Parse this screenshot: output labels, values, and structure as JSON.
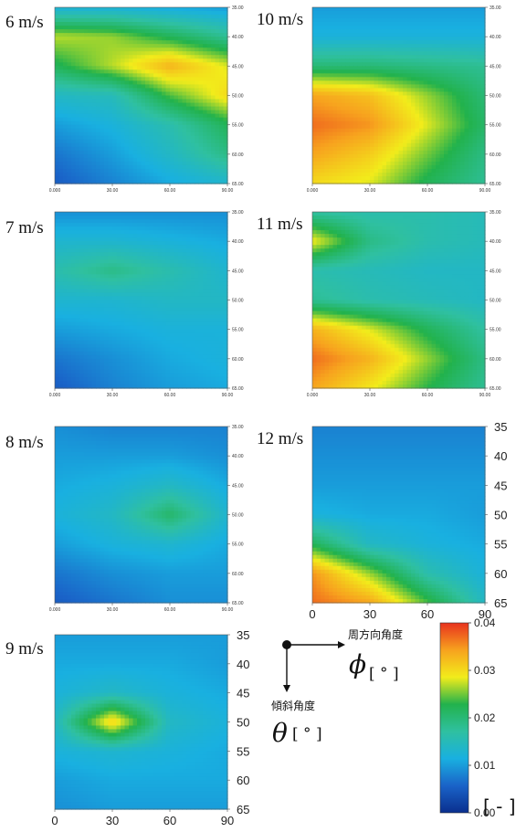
{
  "chart_data": [
    {
      "type": "heatmap",
      "title": "6 m/s",
      "x": [
        0,
        30,
        60,
        90
      ],
      "x_tick_labels": [
        "0.000",
        "30.00",
        "60.00",
        "90.00"
      ],
      "y": [
        35,
        40,
        45,
        50,
        55,
        60,
        65
      ],
      "y_tick_labels": [
        "35.00",
        "40.00",
        "45.00",
        "50.00",
        "55.00",
        "60.00",
        "65.00"
      ],
      "xlim": [
        0,
        90
      ],
      "ylim": [
        35,
        65
      ],
      "values": [
        [
          0.012,
          0.012,
          0.011,
          0.01
        ],
        [
          0.027,
          0.026,
          0.022,
          0.018
        ],
        [
          0.022,
          0.027,
          0.033,
          0.028
        ],
        [
          0.014,
          0.015,
          0.024,
          0.03
        ],
        [
          0.01,
          0.012,
          0.016,
          0.022
        ],
        [
          0.007,
          0.01,
          0.014,
          0.019
        ],
        [
          0.005,
          0.008,
          0.011,
          0.013
        ]
      ]
    },
    {
      "type": "heatmap",
      "title": "10 m/s",
      "x": [
        0,
        30,
        60,
        90
      ],
      "x_tick_labels": [
        "0.000",
        "30.00",
        "60.00",
        "90.00"
      ],
      "y": [
        35,
        40,
        45,
        50,
        55,
        60,
        65
      ],
      "y_tick_labels": [
        "35.00",
        "40.00",
        "45.00",
        "50.00",
        "55.00",
        "60.00",
        "65.00"
      ],
      "xlim": [
        0,
        90
      ],
      "ylim": [
        35,
        65
      ],
      "values": [
        [
          0.01,
          0.01,
          0.01,
          0.01
        ],
        [
          0.012,
          0.012,
          0.012,
          0.012
        ],
        [
          0.02,
          0.02,
          0.019,
          0.018
        ],
        [
          0.034,
          0.032,
          0.026,
          0.02
        ],
        [
          0.037,
          0.035,
          0.028,
          0.021
        ],
        [
          0.034,
          0.031,
          0.025,
          0.019
        ],
        [
          0.03,
          0.028,
          0.022,
          0.018
        ]
      ]
    },
    {
      "type": "heatmap",
      "title": "7 m/s",
      "x": [
        0,
        30,
        60,
        90
      ],
      "x_tick_labels": [
        "0.000",
        "30.00",
        "60.00",
        "90.00"
      ],
      "y": [
        35,
        40,
        45,
        50,
        55,
        60,
        65
      ],
      "y_tick_labels": [
        "35.00",
        "40.00",
        "45.00",
        "50.00",
        "55.00",
        "60.00",
        "65.00"
      ],
      "xlim": [
        0,
        90
      ],
      "ylim": [
        35,
        65
      ],
      "values": [
        [
          0.009,
          0.009,
          0.009,
          0.009
        ],
        [
          0.013,
          0.013,
          0.012,
          0.011
        ],
        [
          0.016,
          0.019,
          0.016,
          0.013
        ],
        [
          0.013,
          0.013,
          0.014,
          0.014
        ],
        [
          0.01,
          0.011,
          0.012,
          0.012
        ],
        [
          0.007,
          0.009,
          0.011,
          0.012
        ],
        [
          0.005,
          0.008,
          0.01,
          0.011
        ]
      ]
    },
    {
      "type": "heatmap",
      "title": "11 m/s",
      "x": [
        0,
        30,
        60,
        90
      ],
      "x_tick_labels": [
        "0.000",
        "30.00",
        "60.00",
        "90.00"
      ],
      "y": [
        35,
        40,
        45,
        50,
        55,
        60,
        65
      ],
      "y_tick_labels": [
        "35.00",
        "40.00",
        "45.00",
        "50.00",
        "55.00",
        "60.00",
        "65.00"
      ],
      "xlim": [
        0,
        90
      ],
      "ylim": [
        35,
        65
      ],
      "values": [
        [
          0.017,
          0.016,
          0.016,
          0.015
        ],
        [
          0.029,
          0.019,
          0.016,
          0.015
        ],
        [
          0.016,
          0.015,
          0.014,
          0.014
        ],
        [
          0.018,
          0.016,
          0.015,
          0.014
        ],
        [
          0.033,
          0.028,
          0.022,
          0.017
        ],
        [
          0.037,
          0.033,
          0.026,
          0.019
        ],
        [
          0.034,
          0.029,
          0.023,
          0.018
        ]
      ]
    },
    {
      "type": "heatmap",
      "title": "8 m/s",
      "x": [
        0,
        30,
        60,
        90
      ],
      "x_tick_labels": [
        "0.000",
        "30.00",
        "60.00",
        "90.00"
      ],
      "y": [
        35,
        40,
        45,
        50,
        55,
        60,
        65
      ],
      "y_tick_labels": [
        "35.00",
        "40.00",
        "45.00",
        "50.00",
        "55.00",
        "60.00",
        "65.00"
      ],
      "xlim": [
        0,
        90
      ],
      "ylim": [
        35,
        65
      ],
      "values": [
        [
          0.009,
          0.008,
          0.008,
          0.008
        ],
        [
          0.01,
          0.01,
          0.01,
          0.009
        ],
        [
          0.011,
          0.012,
          0.014,
          0.011
        ],
        [
          0.012,
          0.014,
          0.021,
          0.013
        ],
        [
          0.01,
          0.012,
          0.013,
          0.011
        ],
        [
          0.007,
          0.009,
          0.01,
          0.01
        ],
        [
          0.005,
          0.007,
          0.009,
          0.009
        ]
      ]
    },
    {
      "type": "heatmap",
      "title": "12 m/s",
      "x": [
        0,
        30,
        60,
        90
      ],
      "x_tick_labels": [
        "0",
        "30",
        "60",
        "90"
      ],
      "y": [
        35,
        40,
        45,
        50,
        55,
        60,
        65
      ],
      "y_tick_labels": [
        "35",
        "40",
        "45",
        "50",
        "55",
        "60",
        "65"
      ],
      "xlim": [
        0,
        90
      ],
      "ylim": [
        35,
        65
      ],
      "values": [
        [
          0.008,
          0.008,
          0.008,
          0.008
        ],
        [
          0.009,
          0.009,
          0.009,
          0.009
        ],
        [
          0.01,
          0.01,
          0.01,
          0.01
        ],
        [
          0.012,
          0.011,
          0.011,
          0.01
        ],
        [
          0.022,
          0.014,
          0.012,
          0.011
        ],
        [
          0.035,
          0.026,
          0.016,
          0.012
        ],
        [
          0.037,
          0.034,
          0.024,
          0.014
        ]
      ]
    },
    {
      "type": "heatmap",
      "title": "9 m/s",
      "x": [
        0,
        30,
        60,
        90
      ],
      "x_tick_labels": [
        "0",
        "30",
        "60",
        "90"
      ],
      "y": [
        35,
        40,
        45,
        50,
        55,
        60,
        65
      ],
      "y_tick_labels": [
        "35",
        "40",
        "45",
        "50",
        "55",
        "60",
        "65"
      ],
      "xlim": [
        0,
        90
      ],
      "ylim": [
        35,
        65
      ],
      "values": [
        [
          0.01,
          0.01,
          0.01,
          0.01
        ],
        [
          0.011,
          0.011,
          0.011,
          0.01
        ],
        [
          0.012,
          0.014,
          0.012,
          0.011
        ],
        [
          0.014,
          0.031,
          0.014,
          0.012
        ],
        [
          0.012,
          0.013,
          0.012,
          0.011
        ],
        [
          0.01,
          0.011,
          0.011,
          0.011
        ],
        [
          0.009,
          0.01,
          0.01,
          0.01
        ]
      ]
    }
  ],
  "colorbar": {
    "min": 0.0,
    "max": 0.04,
    "ticks": [
      "0.00",
      "0.01",
      "0.02",
      "0.03",
      "0.04"
    ],
    "unit": "[ - ]",
    "colors": [
      "#0a2f8e",
      "#1a63c8",
      "#19b0e0",
      "#2fc0a0",
      "#22b24c",
      "#f2ec1b",
      "#f7a21e",
      "#e8321e"
    ]
  },
  "axes_legend": {
    "x_name": "周方向角度",
    "x_symbol": "ϕ",
    "x_unit": "[ ° ]",
    "y_name": "傾斜角度",
    "y_symbol": "θ",
    "y_unit": "[ ° ]"
  }
}
